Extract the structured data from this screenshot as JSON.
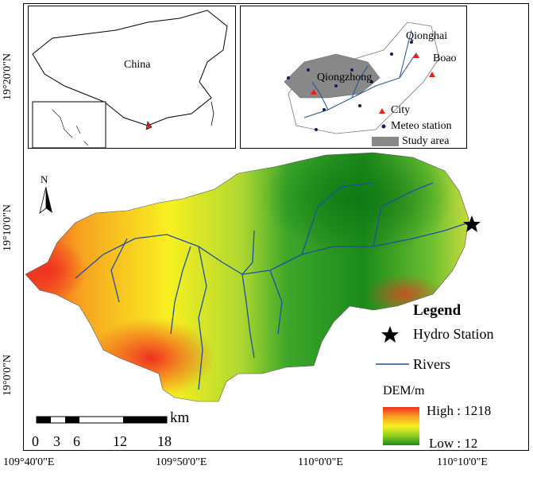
{
  "axes": {
    "lat_ticks": [
      "19°20'0\"N",
      "19°10'0\"N",
      "19°0'0\"N"
    ],
    "lon_ticks": [
      "109°40'0\"E",
      "109°50'0\"E",
      "110°0'0\"E",
      "110°10'0\"E"
    ]
  },
  "inset_china": {
    "label": "China"
  },
  "inset_study": {
    "cities": [
      "Qionghai",
      "Boao",
      "Qiongzhong"
    ],
    "legend": {
      "city": "City",
      "meteo": "Meteo station",
      "study": "Study area"
    }
  },
  "north_arrow": {
    "label": "N"
  },
  "scalebar": {
    "ticks": [
      "0",
      "3",
      "6",
      "12",
      "18"
    ],
    "unit": "km"
  },
  "legend": {
    "title": "Legend",
    "hydro_station": "Hydro Station",
    "rivers": "Rivers",
    "dem_title": "DEM/m",
    "dem_high": "High : 1218",
    "dem_low": "Low : 12"
  },
  "colors": {
    "dem_high": "#f03020",
    "dem_mid": "#f8f020",
    "dem_low": "#1b8a1a",
    "river": "#1f4fa0",
    "city_marker": "#e8201c",
    "meteo_marker": "#10205a",
    "study_area": "#888888"
  }
}
